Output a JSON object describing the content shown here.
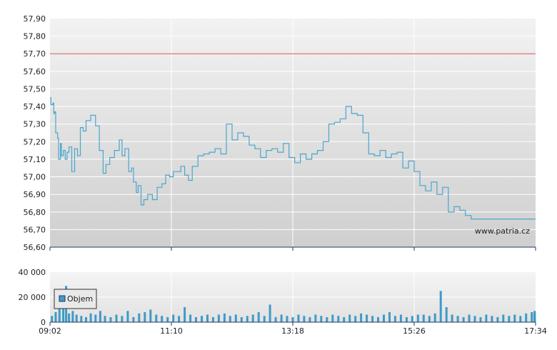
{
  "watermark": "www.patria.cz",
  "colors": {
    "price_line": "#4aa6cc",
    "reference_line": "#d9534f",
    "volume_bar": "#3f9ac6",
    "grid": "#ffffff",
    "axis": "#1f3a66",
    "bg_top": "#f2f2f2",
    "bg_bottom": "#cfcfcf"
  },
  "chart_data": [
    {
      "type": "line",
      "title": "",
      "xlabel": "",
      "ylabel": "",
      "ylim": [
        56.6,
        57.9
      ],
      "yticks": [
        "57,90",
        "57,80",
        "57,70",
        "57,60",
        "57,50",
        "57,40",
        "57,30",
        "57,20",
        "57,10",
        "57,00",
        "56,90",
        "56,80",
        "56,70",
        "56,60"
      ],
      "xticks": [
        "09:02",
        "11:10",
        "13:18",
        "15:26",
        "17:34"
      ],
      "grid": true,
      "reference_value": 57.7,
      "series": [
        {
          "time_min": [
            542,
            543,
            545,
            546,
            547,
            548,
            550,
            551,
            553,
            554,
            556,
            558,
            560,
            562,
            565,
            568,
            571,
            574,
            577,
            580,
            585,
            590,
            594,
            598,
            601,
            605,
            610,
            615,
            618,
            621,
            625,
            628,
            630,
            633,
            635,
            638,
            641,
            645,
            650,
            655,
            660,
            664,
            668,
            672,
            676,
            680,
            684,
            688,
            692,
            698,
            704,
            710,
            716,
            722,
            728,
            734,
            740,
            746,
            752,
            758,
            764,
            770,
            776,
            782,
            788,
            794,
            800,
            806,
            812,
            818,
            824,
            830,
            836,
            842,
            848,
            854,
            860,
            866,
            872,
            878,
            884,
            890,
            896,
            902,
            908,
            914,
            920,
            926,
            932,
            938,
            944,
            950,
            956,
            962,
            968,
            974,
            980,
            986,
            992,
            998,
            1004,
            1010,
            1016,
            1022,
            1028,
            1034,
            1040,
            1046,
            1052,
            1058,
            1064,
            1068,
            1072
          ],
          "values": [
            57.45,
            57.41,
            57.42,
            57.36,
            57.37,
            57.25,
            57.22,
            57.1,
            57.19,
            57.12,
            57.15,
            57.1,
            57.14,
            57.17,
            57.03,
            57.16,
            57.12,
            57.28,
            57.26,
            57.32,
            57.35,
            57.29,
            57.15,
            57.02,
            57.07,
            57.11,
            57.15,
            57.21,
            57.12,
            57.16,
            57.03,
            57.05,
            56.97,
            56.91,
            56.95,
            56.84,
            56.87,
            56.9,
            56.87,
            56.94,
            56.96,
            57.01,
            57.0,
            57.03,
            57.03,
            57.06,
            57.01,
            56.98,
            57.06,
            57.12,
            57.13,
            57.14,
            57.16,
            57.13,
            57.3,
            57.21,
            57.25,
            57.23,
            57.18,
            57.16,
            57.11,
            57.15,
            57.16,
            57.14,
            57.19,
            57.11,
            57.08,
            57.13,
            57.1,
            57.13,
            57.15,
            57.2,
            57.3,
            57.31,
            57.33,
            57.4,
            57.36,
            57.35,
            57.25,
            57.13,
            57.12,
            57.15,
            57.11,
            57.13,
            57.14,
            57.05,
            57.09,
            57.03,
            56.95,
            56.92,
            56.97,
            56.9,
            56.94,
            56.8,
            56.83,
            56.81,
            56.78,
            56.76,
            56.76,
            56.76,
            56.76,
            56.76,
            56.76,
            56.76,
            56.76,
            56.76,
            56.76,
            56.76,
            56.76,
            56.76,
            56.76,
            56.76,
            56.76
          ]
        }
      ]
    },
    {
      "type": "bar",
      "title": "",
      "ylim": [
        0,
        40000
      ],
      "yticks": [
        "40 000",
        "20 000",
        "0"
      ],
      "xticks": [
        "09:02",
        "11:10",
        "13:18",
        "15:26",
        "17:34"
      ],
      "legend": "top-left",
      "series": [
        {
          "name": "Objem",
          "time_min": [
            544,
            548,
            552,
            556,
            559,
            562,
            566,
            570,
            575,
            580,
            585,
            590,
            595,
            600,
            606,
            612,
            618,
            624,
            630,
            636,
            642,
            648,
            654,
            660,
            666,
            672,
            678,
            684,
            690,
            696,
            702,
            708,
            714,
            720,
            726,
            732,
            738,
            744,
            750,
            756,
            762,
            768,
            774,
            780,
            786,
            792,
            798,
            804,
            810,
            816,
            822,
            828,
            834,
            840,
            846,
            852,
            858,
            864,
            870,
            876,
            882,
            888,
            894,
            900,
            906,
            912,
            918,
            924,
            930,
            936,
            942,
            948,
            954,
            960,
            966,
            972,
            978,
            984,
            990,
            996,
            1002,
            1008,
            1014,
            1020,
            1026,
            1032,
            1038,
            1044,
            1050,
            1056,
            1062,
            1068,
            1072
          ],
          "values": [
            5000,
            8000,
            18000,
            12000,
            29000,
            7000,
            9000,
            6000,
            5000,
            4000,
            7000,
            6000,
            9000,
            5000,
            4000,
            6000,
            5000,
            9000,
            4000,
            7000,
            8000,
            10000,
            6000,
            5000,
            4000,
            6000,
            5000,
            12000,
            6000,
            4000,
            5000,
            6000,
            4000,
            6000,
            7000,
            5000,
            6000,
            4000,
            5000,
            6000,
            8000,
            5000,
            14000,
            4000,
            6000,
            5000,
            4000,
            6000,
            5000,
            4000,
            6000,
            5000,
            4000,
            6000,
            5000,
            4000,
            6000,
            5000,
            7000,
            6000,
            5000,
            4000,
            6000,
            8000,
            5000,
            6000,
            4000,
            5000,
            6000,
            6000,
            5000,
            7000,
            25000,
            12000,
            6000,
            5000,
            4000,
            6000,
            5000,
            4000,
            6000,
            5000,
            4000,
            6000,
            5000,
            6000,
            5000,
            7000,
            8000,
            6000,
            7000,
            9000,
            8000
          ]
        }
      ]
    }
  ]
}
